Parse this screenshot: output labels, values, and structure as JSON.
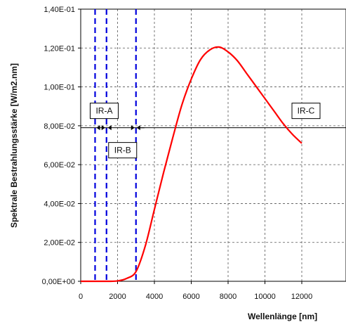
{
  "chart_data": {
    "type": "line",
    "xlabel": "Wellenlänge [nm]",
    "ylabel": "Spektrale Bestrahlungsstärke [W/m2.nm]",
    "xlim": [
      0,
      12000
    ],
    "ylim": [
      0,
      0.14
    ],
    "x_ticks": [
      {
        "value": 0,
        "label": "0"
      },
      {
        "value": 2000,
        "label": "2000"
      },
      {
        "value": 4000,
        "label": "4000"
      },
      {
        "value": 6000,
        "label": "6000"
      },
      {
        "value": 8000,
        "label": "8000"
      },
      {
        "value": 10000,
        "label": "10000"
      },
      {
        "value": 12000,
        "label": "12000"
      }
    ],
    "y_ticks": [
      {
        "value": 0.0,
        "label": "0,00E+00"
      },
      {
        "value": 0.02,
        "label": "2,00E-02"
      },
      {
        "value": 0.04,
        "label": "4,00E-02"
      },
      {
        "value": 0.06,
        "label": "6,00E-02"
      },
      {
        "value": 0.08,
        "label": "8,00E-02"
      },
      {
        "value": 0.1,
        "label": "1,00E-01"
      },
      {
        "value": 0.12,
        "label": "1,20E-01"
      },
      {
        "value": 0.14,
        "label": "1,40E-01"
      }
    ],
    "grid": true,
    "series": [
      {
        "color": "#ff0000",
        "x": [
          0,
          1000,
          1500,
          2000,
          2500,
          3000,
          3500,
          4000,
          4500,
          5000,
          5500,
          6000,
          6500,
          7000,
          7500,
          8000,
          8500,
          9000,
          9500,
          10000,
          10500,
          11000,
          11500,
          12000
        ],
        "y": [
          0,
          0,
          0,
          0.0002,
          0.0015,
          0.005,
          0.018,
          0.037,
          0.056,
          0.074,
          0.091,
          0.104,
          0.114,
          0.119,
          0.1205,
          0.118,
          0.1135,
          0.107,
          0.1005,
          0.094,
          0.0875,
          0.081,
          0.0755,
          0.071
        ]
      }
    ],
    "vertical_lines": {
      "color": "#0000dd",
      "style": "dashed",
      "x": [
        780,
        1400,
        3000
      ]
    },
    "threshold_line": {
      "y": 0.079,
      "color": "#000000"
    },
    "regions": [
      {
        "label": "IR-A",
        "from": 780,
        "to": 1400
      },
      {
        "label": "IR-B",
        "from": 1400,
        "to": 3000
      },
      {
        "label": "IR-C",
        "from": 3000,
        "to": 12000
      }
    ]
  }
}
